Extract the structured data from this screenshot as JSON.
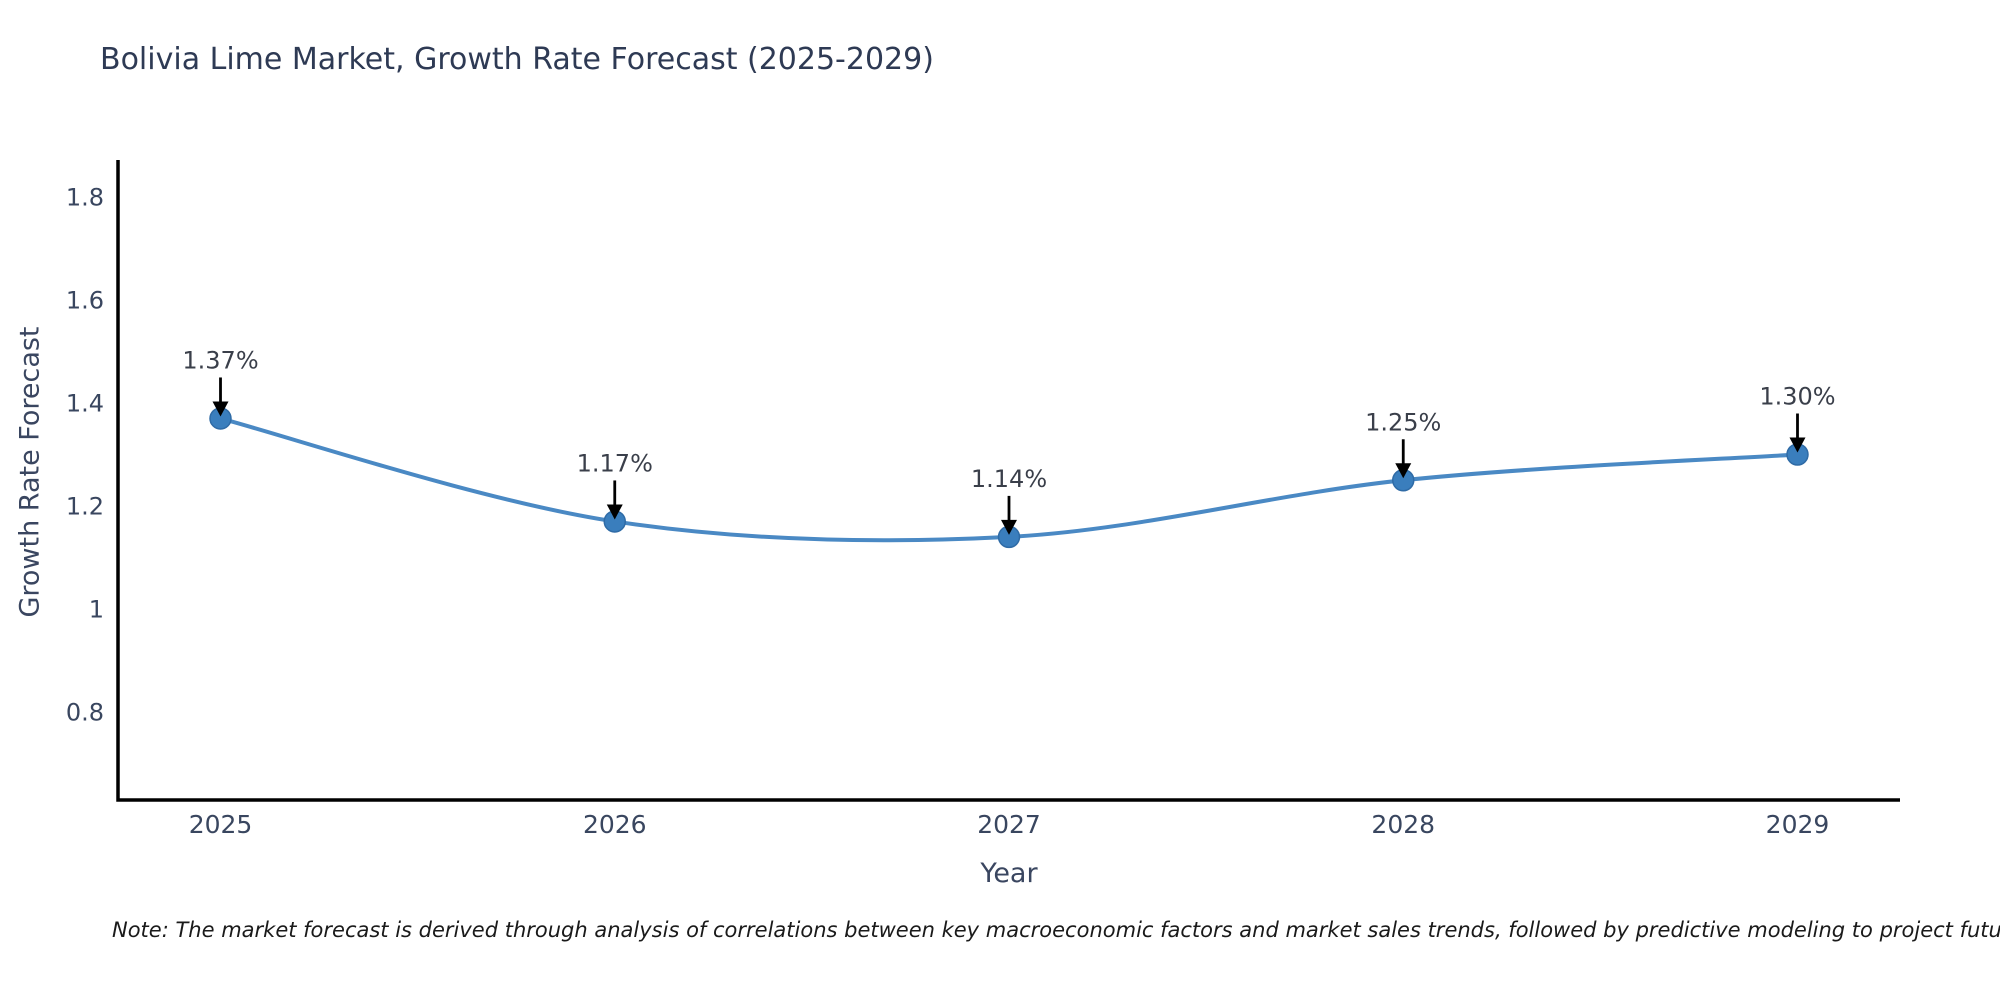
{
  "chart_data": {
    "type": "line",
    "title": "Bolivia Lime Market, Growth Rate Forecast (2025-2029)",
    "xlabel": "Year",
    "ylabel": "Growth Rate Forecast",
    "x": [
      2025,
      2026,
      2027,
      2028,
      2029
    ],
    "values": [
      1.37,
      1.17,
      1.14,
      1.25,
      1.3
    ],
    "point_labels": [
      "1.37%",
      "1.17%",
      "1.14%",
      "1.25%",
      "1.30%"
    ],
    "xtick_labels": [
      "2025",
      "2026",
      "2027",
      "2028",
      "2029"
    ],
    "ytick_values": [
      1.8,
      1.6,
      1.4,
      1.2,
      1.0,
      0.8
    ],
    "ytick_labels": [
      "1.8",
      "1.6",
      "1.4",
      "1.2",
      "1",
      "0.8"
    ],
    "xlim": [
      2024.74,
      2029.26
    ],
    "ylim": [
      0.629,
      1.872
    ],
    "grid": false,
    "legend_position": "none",
    "smooth_spline": true,
    "line_color": "#4a89c4",
    "marker_color": "#3a7ebd",
    "marker_edge_color": "#2f6ba6",
    "axis_color": "#000000",
    "tick_label_color": "#39465f",
    "title_color": "#2e3a54",
    "annotation_color": "#3a3f4a",
    "arrow_color": "#000000"
  },
  "note": {
    "text": "Note: The market forecast is derived through analysis of correlations between key macroeconomic factors and market sales trends, followed by predictive modeling to project future sales"
  }
}
